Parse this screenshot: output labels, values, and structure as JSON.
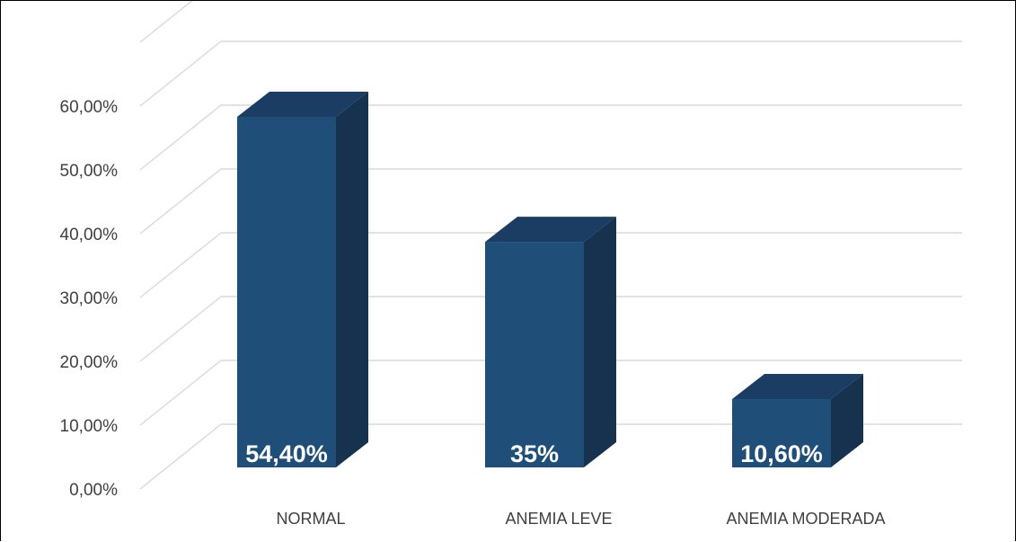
{
  "chart_data": {
    "type": "bar",
    "categories": [
      "NORMAL",
      "ANEMIA LEVE",
      "ANEMIA MODERADA"
    ],
    "values": [
      54.4,
      35,
      10.6
    ],
    "data_labels": [
      "54,40%",
      "35%",
      "10,60%"
    ],
    "y_tick_values": [
      0,
      10,
      20,
      30,
      40,
      50,
      60
    ],
    "y_tick_labels": [
      "0,00%",
      "10,00%",
      "20,00%",
      "30,00%",
      "40,00%",
      "50,00%",
      "60,00%"
    ],
    "ylim": [
      0,
      70
    ],
    "grid": true,
    "three_d": true,
    "title": "",
    "xlabel": "",
    "ylabel": "",
    "colors": {
      "front": "#1f4e79",
      "side": "#16324f",
      "top": "#1b3d63",
      "grid": "#d9d9d9",
      "text": "#404040"
    }
  }
}
